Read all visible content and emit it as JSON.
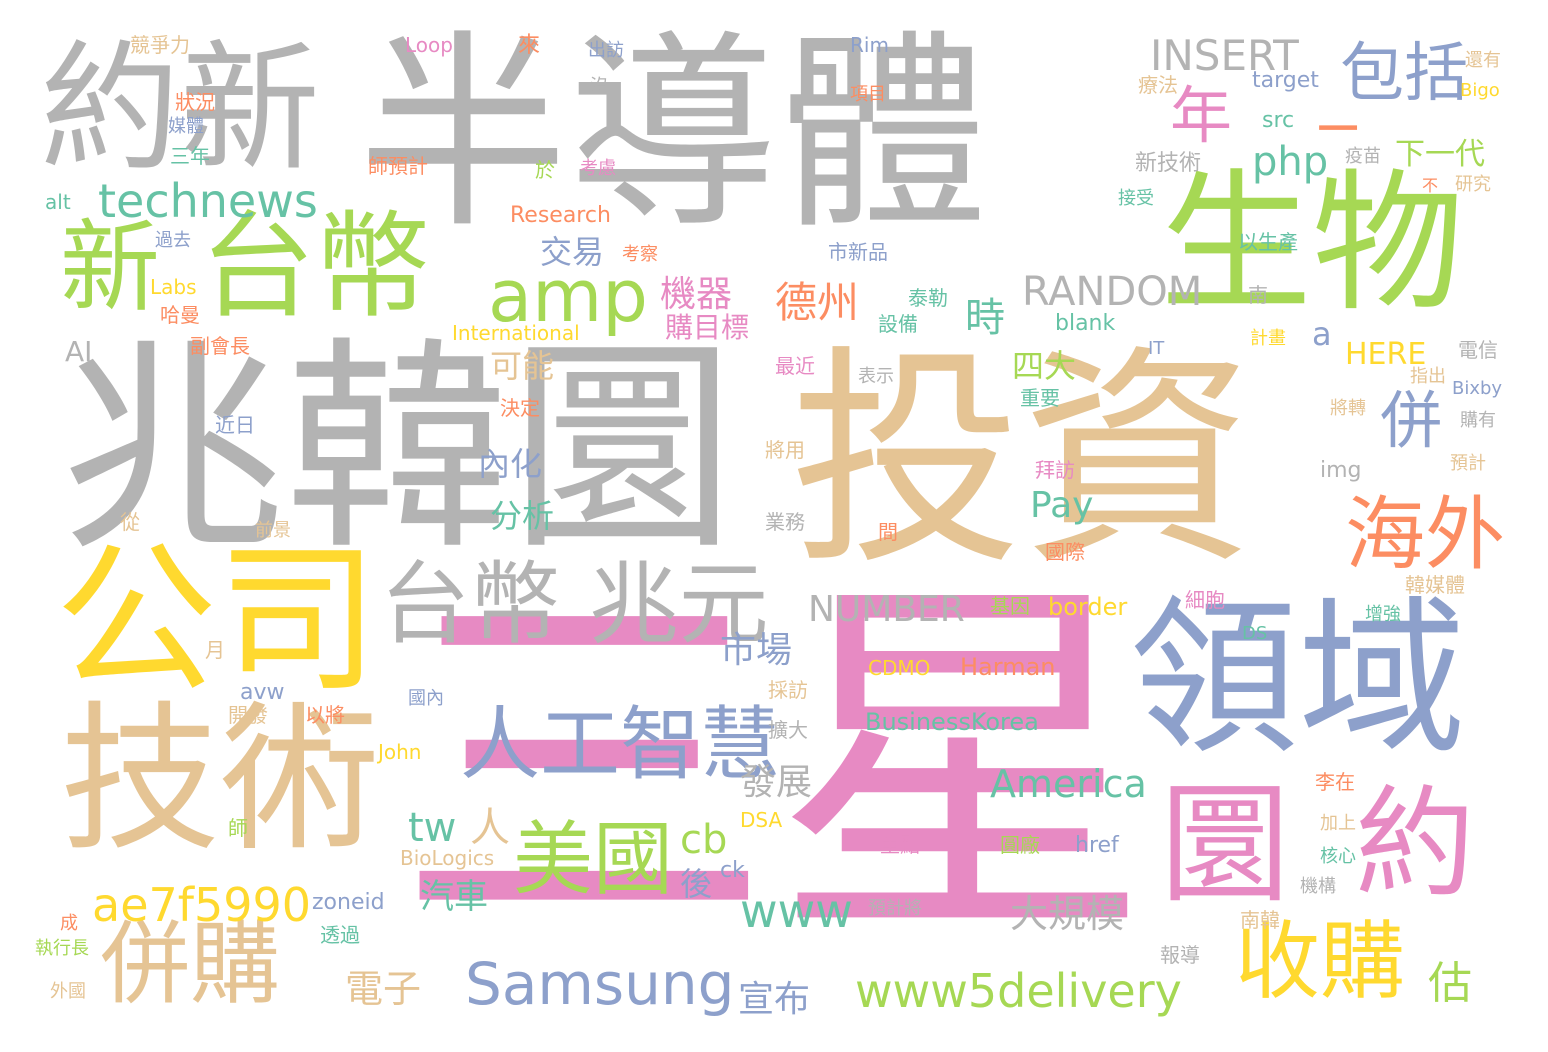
{
  "palette": {
    "gray": "#b3b3b3",
    "tan": "#e5c494",
    "pink": "#e78ac3",
    "blue": "#8da0cb",
    "green": "#a6d854",
    "yellow": "#ffd92f",
    "orange": "#fc8d62",
    "teal": "#66c2a5"
  },
  "words": [
    {
      "text": "半導體",
      "color": "gray"
    },
    {
      "text": "投資",
      "color": "tan"
    },
    {
      "text": "三星",
      "color": "pink"
    },
    {
      "text": "兆韓圜",
      "color": "gray"
    },
    {
      "text": "生物",
      "color": "green"
    },
    {
      "text": "領域",
      "color": "blue"
    },
    {
      "text": "約新",
      "color": "gray"
    },
    {
      "text": "公司",
      "color": "yellow"
    },
    {
      "text": "技術",
      "color": "tan"
    },
    {
      "text": "台幣",
      "color": "green"
    },
    {
      "text": "新",
      "color": "green"
    },
    {
      "text": "台幣 兆元",
      "color": "gray"
    },
    {
      "text": "人工智慧",
      "color": "blue"
    },
    {
      "text": "圜",
      "color": "pink"
    },
    {
      "text": "約",
      "color": "pink"
    },
    {
      "text": "海外",
      "color": "orange"
    },
    {
      "text": "併購",
      "color": "tan"
    },
    {
      "text": "收購",
      "color": "yellow"
    },
    {
      "text": "美國",
      "color": "green"
    },
    {
      "text": "amp",
      "color": "green"
    },
    {
      "text": "包括",
      "color": "blue"
    },
    {
      "text": "年",
      "color": "pink"
    },
    {
      "text": "technews",
      "color": "teal"
    },
    {
      "text": "Samsung",
      "color": "blue"
    },
    {
      "text": "www5delivery",
      "color": "green"
    },
    {
      "text": "ae7f5990",
      "color": "yellow"
    },
    {
      "text": "INSERT",
      "color": "gray"
    },
    {
      "text": "RANDOM",
      "color": "gray"
    },
    {
      "text": "NUMBER",
      "color": "gray"
    },
    {
      "text": "php",
      "color": "teal"
    },
    {
      "text": "www",
      "color": "teal"
    },
    {
      "text": "America",
      "color": "teal"
    },
    {
      "text": "併",
      "color": "blue"
    },
    {
      "text": "德州",
      "color": "orange"
    },
    {
      "text": "時",
      "color": "teal"
    },
    {
      "text": "機器",
      "color": "pink"
    },
    {
      "text": "購目標",
      "color": "pink"
    },
    {
      "text": "cb",
      "color": "green"
    },
    {
      "text": "tw",
      "color": "teal"
    },
    {
      "text": "人",
      "color": "tan"
    },
    {
      "text": "大規模",
      "color": "gray"
    },
    {
      "text": "電子",
      "color": "tan"
    },
    {
      "text": "宣布",
      "color": "blue"
    },
    {
      "text": "估",
      "color": "green"
    },
    {
      "text": "Pay",
      "color": "teal"
    },
    {
      "text": "市場",
      "color": "blue"
    },
    {
      "text": "發展",
      "color": "gray"
    },
    {
      "text": "四大",
      "color": "green"
    },
    {
      "text": "汽車",
      "color": "teal"
    },
    {
      "text": "後",
      "color": "blue"
    },
    {
      "text": "交易",
      "color": "blue"
    },
    {
      "text": "可能",
      "color": "tan"
    },
    {
      "text": "內化",
      "color": "blue"
    },
    {
      "text": "分析",
      "color": "teal"
    },
    {
      "text": "HERE",
      "color": "yellow"
    },
    {
      "text": "a",
      "color": "blue"
    },
    {
      "text": "AI",
      "color": "gray"
    },
    {
      "text": "下一代",
      "color": "green"
    },
    {
      "text": "新技術",
      "color": "gray"
    },
    {
      "text": "Research",
      "color": "orange"
    },
    {
      "text": "International",
      "color": "yellow"
    },
    {
      "text": "Labs",
      "color": "yellow"
    },
    {
      "text": "blank",
      "color": "teal"
    },
    {
      "text": "border",
      "color": "yellow"
    },
    {
      "text": "Harman",
      "color": "orange"
    },
    {
      "text": "CDMO",
      "color": "yellow"
    },
    {
      "text": "BusinessKorea",
      "color": "teal"
    },
    {
      "text": "John",
      "color": "yellow"
    },
    {
      "text": "DSA",
      "color": "yellow"
    },
    {
      "text": "BioLogics",
      "color": "tan"
    },
    {
      "text": "ck",
      "color": "blue"
    },
    {
      "text": "zoneid",
      "color": "blue"
    },
    {
      "text": "href",
      "color": "blue"
    },
    {
      "text": "img",
      "color": "gray"
    },
    {
      "text": "src",
      "color": "teal"
    },
    {
      "text": "target",
      "color": "blue"
    },
    {
      "text": "Loop",
      "color": "pink"
    },
    {
      "text": "Rim",
      "color": "blue"
    },
    {
      "text": "Bigo",
      "color": "yellow"
    },
    {
      "text": "Bixby",
      "color": "blue"
    },
    {
      "text": "alt",
      "color": "teal"
    },
    {
      "text": "avw",
      "color": "blue"
    },
    {
      "text": "IT",
      "color": "blue"
    },
    {
      "text": "DS",
      "color": "teal"
    },
    {
      "text": "競爭力",
      "color": "tan"
    },
    {
      "text": "狀況",
      "color": "orange"
    },
    {
      "text": "媒體",
      "color": "blue"
    },
    {
      "text": "三年",
      "color": "teal"
    },
    {
      "text": "師預計",
      "color": "orange"
    },
    {
      "text": "過去",
      "color": "blue"
    },
    {
      "text": "哈曼",
      "color": "orange"
    },
    {
      "text": "副會長",
      "color": "orange"
    },
    {
      "text": "近日",
      "color": "blue"
    },
    {
      "text": "前景",
      "color": "tan"
    },
    {
      "text": "開發",
      "color": "tan"
    },
    {
      "text": "以將",
      "color": "orange"
    },
    {
      "text": "師",
      "color": "green"
    },
    {
      "text": "月",
      "color": "tan"
    },
    {
      "text": "從",
      "color": "tan"
    },
    {
      "text": "成",
      "color": "orange"
    },
    {
      "text": "執行長",
      "color": "green"
    },
    {
      "text": "外國",
      "color": "tan"
    },
    {
      "text": "出訪",
      "color": "blue"
    },
    {
      "text": "沒",
      "color": "gray"
    },
    {
      "text": "於",
      "color": "green"
    },
    {
      "text": "考慮",
      "color": "pink"
    },
    {
      "text": "考察",
      "color": "orange"
    },
    {
      "text": "項目",
      "color": "orange"
    },
    {
      "text": "市新品",
      "color": "blue"
    },
    {
      "text": "泰勒",
      "color": "teal"
    },
    {
      "text": "設備",
      "color": "teal"
    },
    {
      "text": "最近",
      "color": "pink"
    },
    {
      "text": "表示",
      "color": "gray"
    },
    {
      "text": "決定",
      "color": "orange"
    },
    {
      "text": "將用",
      "color": "tan"
    },
    {
      "text": "業務",
      "color": "gray"
    },
    {
      "text": "重要",
      "color": "teal"
    },
    {
      "text": "拜訪",
      "color": "pink"
    },
    {
      "text": "間",
      "color": "orange"
    },
    {
      "text": "國際",
      "color": "orange"
    },
    {
      "text": "擴大",
      "color": "gray"
    },
    {
      "text": "採訪",
      "color": "tan"
    },
    {
      "text": "國內",
      "color": "blue"
    },
    {
      "text": "重點",
      "color": "pink"
    },
    {
      "text": "圓廠",
      "color": "green"
    },
    {
      "text": "透過",
      "color": "teal"
    },
    {
      "text": "預計將",
      "color": "gray"
    },
    {
      "text": "報導",
      "color": "gray"
    },
    {
      "text": "南韓",
      "color": "tan"
    },
    {
      "text": "機構",
      "color": "gray"
    },
    {
      "text": "核心",
      "color": "teal"
    },
    {
      "text": "加上",
      "color": "tan"
    },
    {
      "text": "李在",
      "color": "orange"
    },
    {
      "text": "細胞",
      "color": "pink"
    },
    {
      "text": "韓媒體",
      "color": "tan"
    },
    {
      "text": "基因",
      "color": "green"
    },
    {
      "text": "增強",
      "color": "teal"
    },
    {
      "text": "療法",
      "color": "tan"
    },
    {
      "text": "疫苗",
      "color": "gray"
    },
    {
      "text": "研究",
      "color": "tan"
    },
    {
      "text": "還有",
      "color": "tan"
    },
    {
      "text": "以生產",
      "color": "teal"
    },
    {
      "text": "接受",
      "color": "teal"
    },
    {
      "text": "電信",
      "color": "gray"
    },
    {
      "text": "指出",
      "color": "tan"
    },
    {
      "text": "購有",
      "color": "gray"
    },
    {
      "text": "預計",
      "color": "tan"
    },
    {
      "text": "將轉",
      "color": "tan"
    },
    {
      "text": "計畫",
      "color": "yellow"
    },
    {
      "text": "南",
      "color": "gray"
    },
    {
      "text": "不",
      "color": "orange"
    },
    {
      "text": "來",
      "color": "orange"
    },
    {
      "text": "一",
      "color": "orange"
    }
  ]
}
